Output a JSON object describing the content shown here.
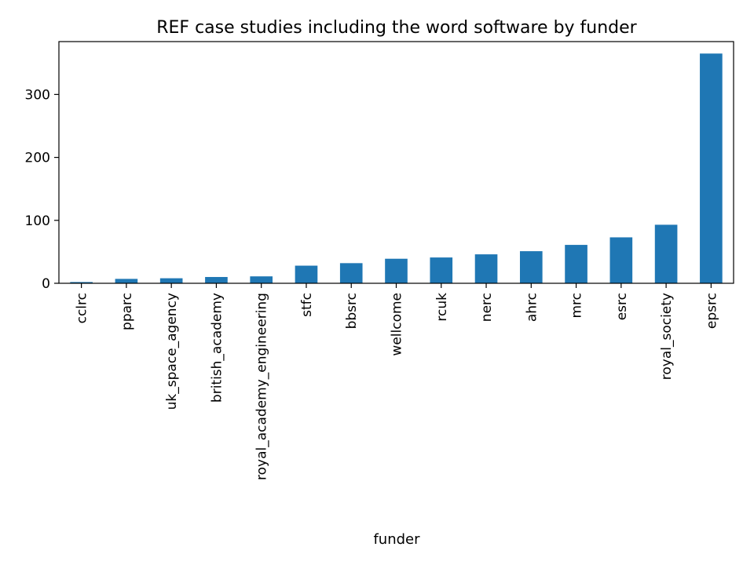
{
  "chart_data": {
    "type": "bar",
    "title": "REF case studies including the word software by funder",
    "xlabel": "funder",
    "ylabel": "",
    "ylim": [
      0,
      384
    ],
    "yticks": [
      0,
      100,
      200,
      300
    ],
    "grid": false,
    "legend": "none",
    "bar_color": "#1f77b4",
    "categories": [
      "cclrc",
      "pparc",
      "uk_space_agency",
      "british_academy",
      "royal_academy_engineering",
      "stfc",
      "bbsrc",
      "wellcome",
      "rcuk",
      "nerc",
      "ahrc",
      "mrc",
      "esrc",
      "royal_society",
      "epsrc"
    ],
    "values": [
      2,
      7,
      8,
      10,
      11,
      28,
      32,
      39,
      41,
      46,
      51,
      61,
      73,
      93,
      365
    ]
  }
}
